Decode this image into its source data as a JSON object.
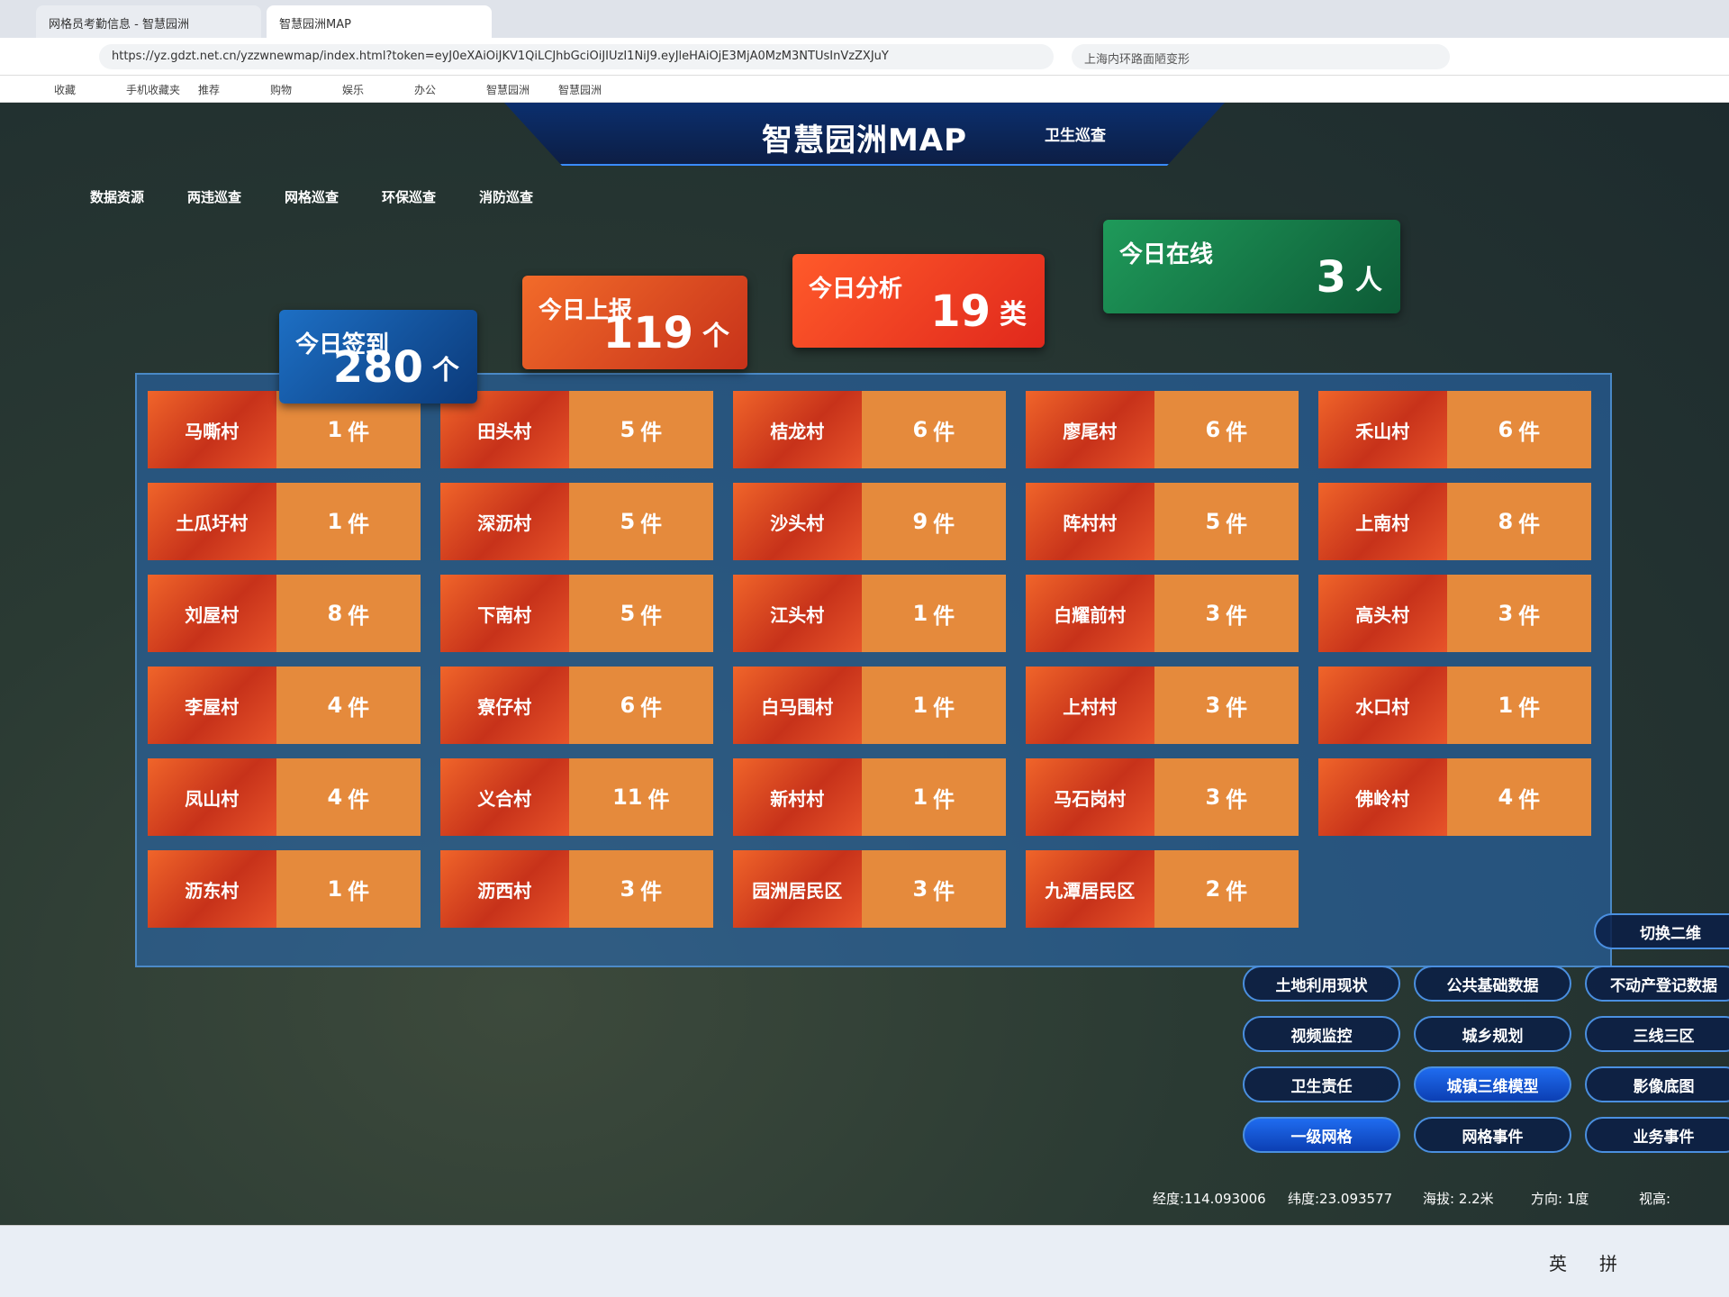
{
  "browser": {
    "tabs": [
      "网格员考勤信息 - 智慧园洲",
      "智慧园洲MAP"
    ],
    "url": "https://yz.gdzt.net.cn/yzzwnewmap/index.html?token=eyJ0eXAiOiJKV1QiLCJhbGciOiJIUzI1NiJ9.eyJleHAiOjE3MjA0MzM3NTUsInVzZXJuY",
    "search": "上海内环路面陋变形",
    "bookmarks": [
      "收藏",
      "手机收藏夹",
      "推荐",
      "购物",
      "娱乐",
      "办公",
      "智慧园洲",
      "智慧园洲"
    ]
  },
  "header": {
    "title": "智慧园洲MAP",
    "right": "卫生巡查"
  },
  "nav": [
    "数据资源",
    "两违巡查",
    "网格巡查",
    "环保巡查",
    "消防巡查"
  ],
  "stats": [
    {
      "label": "今日签到",
      "value": 280,
      "unit": "个"
    },
    {
      "label": "今日上报",
      "value": 119,
      "unit": "个"
    },
    {
      "label": "今日分析",
      "value": 19,
      "unit": "类"
    },
    {
      "label": "今日在线",
      "value": 3,
      "unit": "人"
    }
  ],
  "village_unit": "件",
  "villages": [
    [
      {
        "name": "马嘶村",
        "count": 1
      },
      {
        "name": "土瓜圩村",
        "count": 1
      },
      {
        "name": "刘屋村",
        "count": 8
      },
      {
        "name": "李屋村",
        "count": 4
      },
      {
        "name": "凤山村",
        "count": 4
      },
      {
        "name": "沥东村",
        "count": 1
      }
    ],
    [
      {
        "name": "田头村",
        "count": 5
      },
      {
        "name": "深沥村",
        "count": 5
      },
      {
        "name": "下南村",
        "count": 5
      },
      {
        "name": "寮仔村",
        "count": 6
      },
      {
        "name": "义合村",
        "count": 11
      },
      {
        "name": "沥西村",
        "count": 3
      }
    ],
    [
      {
        "name": "桔龙村",
        "count": 6
      },
      {
        "name": "沙头村",
        "count": 9
      },
      {
        "name": "江头村",
        "count": 1
      },
      {
        "name": "白马围村",
        "count": 1
      },
      {
        "name": "新村村",
        "count": 1
      },
      {
        "name": "园洲居民区",
        "count": 3
      }
    ],
    [
      {
        "name": "廖尾村",
        "count": 6
      },
      {
        "name": "阵村村",
        "count": 5
      },
      {
        "name": "白耀前村",
        "count": 3
      },
      {
        "name": "上村村",
        "count": 3
      },
      {
        "name": "马石岗村",
        "count": 3
      },
      {
        "name": "九潭居民区",
        "count": 2
      }
    ],
    [
      {
        "name": "禾山村",
        "count": 6
      },
      {
        "name": "上南村",
        "count": 8
      },
      {
        "name": "高头村",
        "count": 3
      },
      {
        "name": "水口村",
        "count": 1
      },
      {
        "name": "佛岭村",
        "count": 4
      }
    ]
  ],
  "switch_button": "切换二维",
  "layer_buttons": [
    [
      {
        "label": "土地利用现状"
      },
      {
        "label": "视频监控"
      },
      {
        "label": "卫生责任"
      },
      {
        "label": "一级网格",
        "active": true
      }
    ],
    [
      {
        "label": "公共基础数据"
      },
      {
        "label": "城乡规划"
      },
      {
        "label": "城镇三维模型",
        "active": true
      },
      {
        "label": "网格事件"
      }
    ],
    [
      {
        "label": "不动产登记数据"
      },
      {
        "label": "三线三区"
      },
      {
        "label": "影像底图"
      },
      {
        "label": "业务事件"
      }
    ]
  ],
  "status": [
    "经度:114.093006",
    "纬度:23.093577",
    "海拔: 2.2米",
    "方向: 1度",
    "视高:"
  ],
  "taskbar": [
    "英",
    "拼"
  ]
}
